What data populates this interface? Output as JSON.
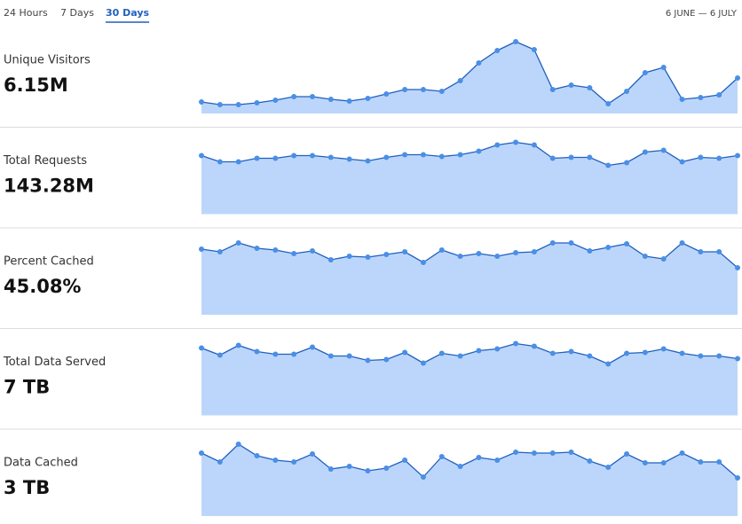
{
  "tabs": [
    "24 Hours",
    "7 Days",
    "30 Days"
  ],
  "date_range": "6 JUNE — 6 JULY",
  "metrics": [
    {
      "label": "Unique Visitors",
      "value": "6.15M",
      "chart": {
        "type": "area",
        "ylim": [
          0,
          86
        ],
        "color": "#4a8fe6",
        "fill": "#bcd6fb",
        "line": "#1f5fbf",
        "values": [
          13,
          10,
          10,
          12,
          15,
          19,
          19,
          16,
          14,
          17,
          22,
          27,
          27,
          25,
          37,
          57,
          71,
          81,
          72,
          27,
          32,
          29,
          11,
          25,
          46,
          52,
          16,
          18,
          21,
          40
        ]
      }
    },
    {
      "label": "Total Requests",
      "value": "143.28M",
      "chart": {
        "type": "area",
        "ylim": [
          0,
          86
        ],
        "color": "#4a8fe6",
        "fill": "#bcd6fb",
        "line": "#1f5fbf",
        "values": [
          66,
          59,
          59,
          63,
          63,
          66,
          66,
          64,
          62,
          60,
          64,
          67,
          67,
          65,
          67,
          71,
          78,
          81,
          78,
          63,
          64,
          64,
          55,
          58,
          70,
          72,
          59,
          64,
          63,
          66
        ]
      }
    },
    {
      "label": "Percent Cached",
      "value": "45.08%",
      "chart": {
        "type": "area",
        "ylim": [
          0,
          86
        ],
        "color": "#4a8fe6",
        "fill": "#bcd6fb",
        "line": "#1f5fbf",
        "values": [
          74,
          71,
          81,
          75,
          73,
          69,
          72,
          62,
          66,
          65,
          68,
          71,
          59,
          73,
          66,
          69,
          66,
          70,
          71,
          81,
          81,
          72,
          76,
          80,
          66,
          63,
          81,
          71,
          71,
          53
        ]
      }
    },
    {
      "label": "Total Data Served",
      "value": "7 TB",
      "chart": {
        "type": "area",
        "ylim": [
          0,
          86
        ],
        "color": "#4a8fe6",
        "fill": "#bcd6fb",
        "line": "#1f5fbf",
        "values": [
          76,
          68,
          79,
          72,
          69,
          69,
          77,
          67,
          67,
          62,
          63,
          71,
          59,
          70,
          67,
          73,
          75,
          81,
          78,
          70,
          72,
          67,
          58,
          70,
          71,
          75,
          70,
          67,
          67,
          64
        ]
      }
    },
    {
      "label": "Data Cached",
      "value": "3 TB",
      "chart": {
        "type": "area",
        "ylim": [
          0,
          86
        ],
        "color": "#4a8fe6",
        "fill": "#bcd6fb",
        "line": "#1f5fbf",
        "values": [
          71,
          61,
          81,
          68,
          63,
          61,
          70,
          53,
          56,
          51,
          54,
          63,
          44,
          67,
          56,
          66,
          63,
          72,
          71,
          71,
          72,
          62,
          55,
          70,
          60,
          60,
          71,
          61,
          61,
          43
        ]
      }
    }
  ]
}
